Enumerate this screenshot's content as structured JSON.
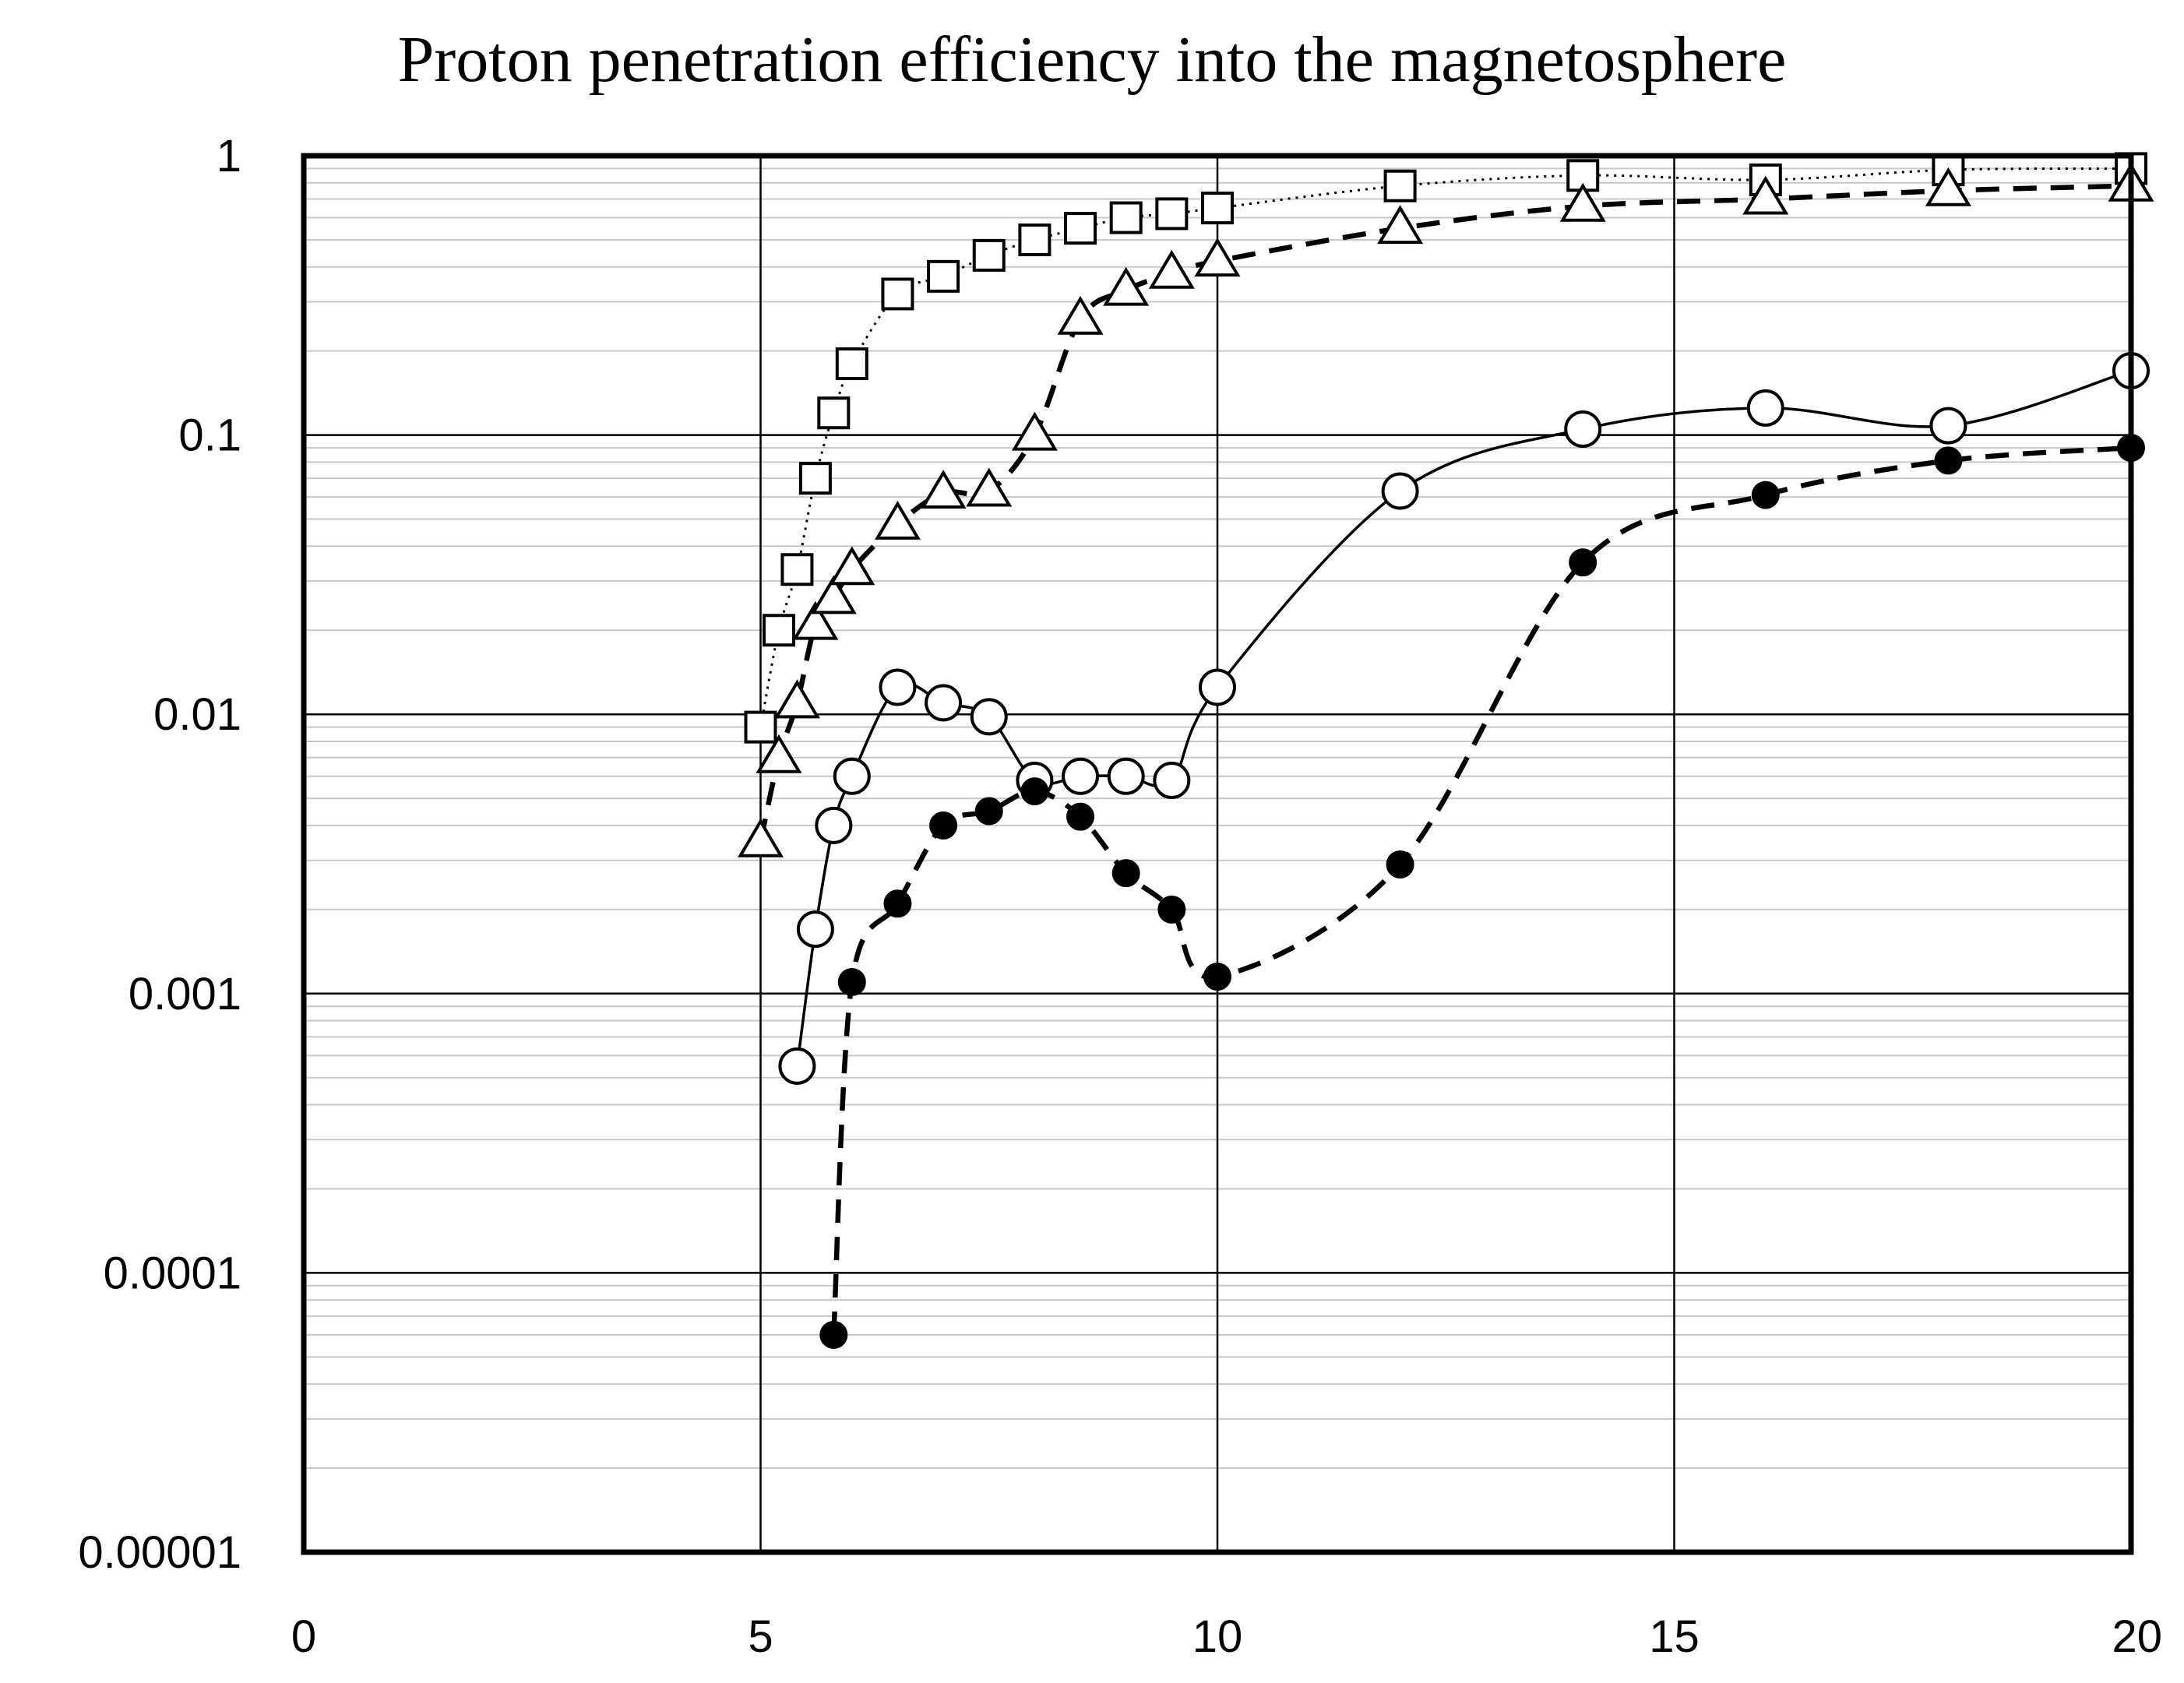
{
  "chart_data": {
    "type": "line",
    "title": "Proton penetration efficiency into the magnetosphere",
    "xlabel": "",
    "ylabel": "",
    "xlim": [
      0,
      20
    ],
    "ylim": [
      1e-05,
      1
    ],
    "yscale": "log",
    "grid": true,
    "legend": "none",
    "x_ticks": [
      {
        "value": 0,
        "label": "0"
      },
      {
        "value": 5,
        "label": "5"
      },
      {
        "value": 10,
        "label": "10"
      },
      {
        "value": 15,
        "label": "15"
      },
      {
        "value": 20,
        "label": "20"
      }
    ],
    "y_ticks": [
      {
        "value": 1,
        "label": "1"
      },
      {
        "value": 0.1,
        "label": "0.1"
      },
      {
        "value": 0.01,
        "label": "0.01"
      },
      {
        "value": 0.001,
        "label": "0.001"
      },
      {
        "value": 0.0001,
        "label": "0.0001"
      },
      {
        "value": 1e-05,
        "label": "0.00001"
      }
    ],
    "series": [
      {
        "marker": "square",
        "line": "dotted",
        "x": [
          5,
          5.2,
          5.4,
          5.6,
          5.8,
          6,
          6.5,
          7,
          7.5,
          8,
          8.5,
          9,
          9.5,
          10,
          12,
          14,
          16,
          18,
          20
        ],
        "y": [
          0.009,
          0.02,
          0.033,
          0.07,
          0.12,
          0.18,
          0.32,
          0.37,
          0.44,
          0.5,
          0.55,
          0.6,
          0.62,
          0.65,
          0.78,
          0.85,
          0.82,
          0.89,
          0.9
        ]
      },
      {
        "marker": "triangle",
        "line": "dashed",
        "x": [
          5,
          5.2,
          5.4,
          5.6,
          5.8,
          6,
          6.5,
          7,
          7.5,
          8,
          8.5,
          9,
          9.5,
          10,
          12,
          14,
          16,
          18,
          20
        ],
        "y": [
          0.0035,
          0.007,
          0.011,
          0.021,
          0.026,
          0.033,
          0.048,
          0.062,
          0.063,
          0.1,
          0.26,
          0.33,
          0.38,
          0.42,
          0.55,
          0.66,
          0.7,
          0.75,
          0.78
        ]
      },
      {
        "marker": "open-circle",
        "line": "solid",
        "x": [
          5.4,
          5.6,
          5.8,
          6,
          6.5,
          7,
          7.5,
          8,
          8.5,
          9,
          9.5,
          10,
          12,
          14,
          16,
          18,
          20
        ],
        "y": [
          0.00055,
          0.0017,
          0.004,
          0.006,
          0.0125,
          0.011,
          0.0098,
          0.0058,
          0.006,
          0.006,
          0.0058,
          0.0125,
          0.063,
          0.105,
          0.125,
          0.108,
          0.17
        ]
      },
      {
        "marker": "filled-circle",
        "line": "dashed",
        "x": [
          5.8,
          6,
          6.5,
          7,
          7.5,
          8,
          8.5,
          9,
          9.5,
          10,
          12,
          14,
          16,
          18,
          20
        ],
        "y": [
          6e-05,
          0.0011,
          0.0021,
          0.004,
          0.0045,
          0.0053,
          0.0043,
          0.0027,
          0.002,
          0.00115,
          0.0029,
          0.035,
          0.061,
          0.081,
          0.09
        ]
      }
    ]
  }
}
